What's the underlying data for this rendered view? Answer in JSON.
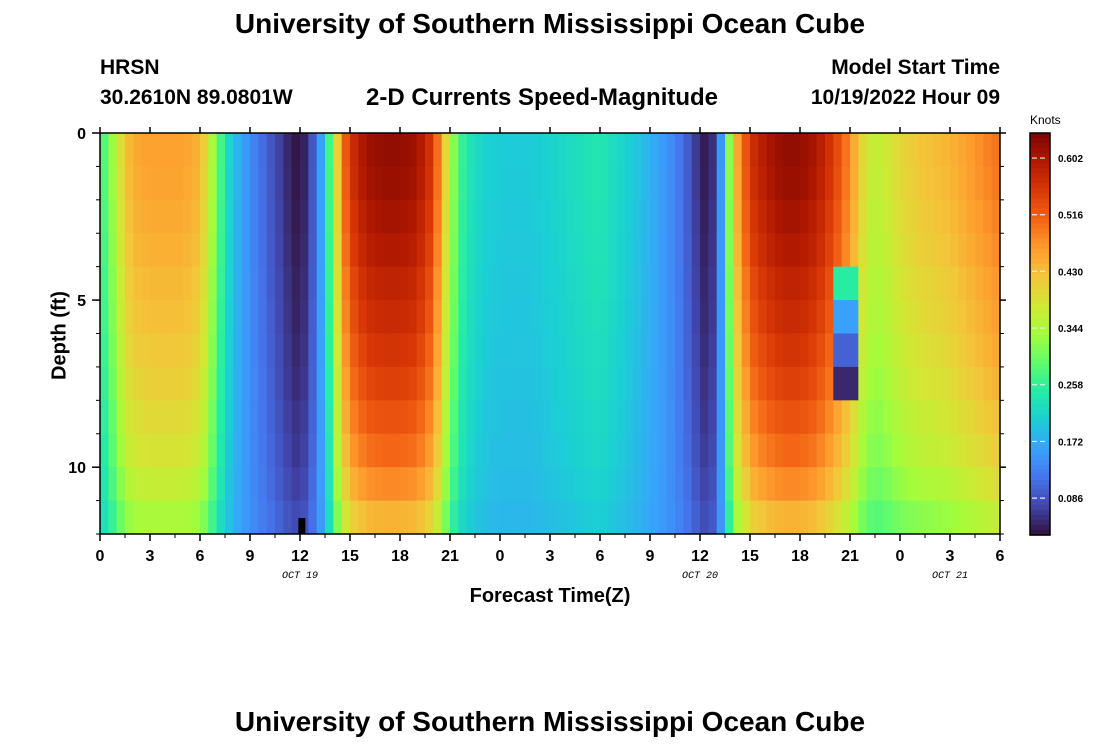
{
  "page": {
    "title": "University of Southern Mississippi Ocean Cube",
    "bottom_title": "University of Southern Mississippi Ocean Cube"
  },
  "header": {
    "station": "HRSN",
    "coordinates": "30.2610N  89.0801W",
    "chart_title": "2-D Currents Speed-Magnitude",
    "model_start_label": "Model Start Time",
    "model_start_value": "10/19/2022 Hour 09"
  },
  "chart_data": {
    "type": "heatmap",
    "title": "2-D Currents Speed-Magnitude",
    "xlabel": "Forecast Time(Z)",
    "ylabel": "Depth (ft)",
    "colorbar_label": "Knots",
    "x_ticks": [
      "0",
      "3",
      "6",
      "9",
      "12",
      "15",
      "18",
      "21",
      "0",
      "3",
      "6",
      "9",
      "12",
      "15",
      "18",
      "21",
      "0",
      "3",
      "6"
    ],
    "date_labels": [
      {
        "label": "OCT 19",
        "at_tick": 4
      },
      {
        "label": "OCT 20",
        "at_tick": 12
      },
      {
        "label": "OCT 21",
        "at_tick": 17
      }
    ],
    "y_ticks": [
      "0",
      "5",
      "10"
    ],
    "ylim": [
      0,
      12
    ],
    "xlim_hours": [
      0,
      54
    ],
    "colorbar_ticks": [
      "0.602",
      "0.516",
      "0.430",
      "0.344",
      "0.258",
      "0.172",
      "0.086"
    ],
    "colorbar_range": [
      0.03,
      0.64
    ],
    "colors": {
      "scale": [
        "#30123b",
        "#4145ab",
        "#4675ed",
        "#39a2fc",
        "#1bcfd4",
        "#24eca6",
        "#61fc6c",
        "#a4fc3b",
        "#d1e834",
        "#f3c63a",
        "#fe9b2d",
        "#f36315",
        "#d93806",
        "#b11901",
        "#7a0402"
      ]
    },
    "speed_profile": {
      "hours": [
        0,
        0.5,
        1,
        1.5,
        2,
        3,
        5,
        6,
        6.5,
        7,
        7.5,
        8,
        9,
        10,
        11,
        11.5,
        12,
        12.5,
        13,
        13.5,
        14,
        14.5,
        15,
        16,
        17,
        18,
        19,
        20,
        20.5,
        21,
        21.5,
        22,
        23,
        24,
        26,
        28,
        30,
        32,
        34,
        35,
        35.5,
        36,
        36.5,
        37,
        37.5,
        38,
        39,
        40,
        41,
        42,
        43,
        44,
        45,
        45.5,
        46,
        46.5,
        47,
        48,
        49,
        51,
        52,
        53,
        54
      ],
      "surface": [
        0.26,
        0.3,
        0.36,
        0.42,
        0.45,
        0.46,
        0.46,
        0.44,
        0.38,
        0.3,
        0.24,
        0.19,
        0.14,
        0.1,
        0.06,
        0.04,
        0.03,
        0.06,
        0.12,
        0.2,
        0.34,
        0.48,
        0.56,
        0.61,
        0.62,
        0.62,
        0.61,
        0.55,
        0.45,
        0.35,
        0.28,
        0.24,
        0.21,
        0.2,
        0.2,
        0.22,
        0.24,
        0.2,
        0.15,
        0.11,
        0.08,
        0.05,
        0.03,
        0.08,
        0.22,
        0.42,
        0.56,
        0.6,
        0.62,
        0.62,
        0.6,
        0.55,
        0.48,
        0.42,
        0.38,
        0.36,
        0.37,
        0.4,
        0.42,
        0.44,
        0.46,
        0.48,
        0.5
      ]
    },
    "depth_attenuation": [
      1.0,
      0.99,
      0.97,
      0.95,
      0.92,
      0.9,
      0.87,
      0.84,
      0.8,
      0.76,
      0.7,
      0.62
    ],
    "special_cells": [
      {
        "hour_from": 44,
        "hour_to": 45.5,
        "depth_from": 4,
        "depth_to": 8,
        "speeds": [
          0.25,
          0.16,
          0.1,
          0.05
        ],
        "note": "low-speed pocket"
      }
    ]
  }
}
